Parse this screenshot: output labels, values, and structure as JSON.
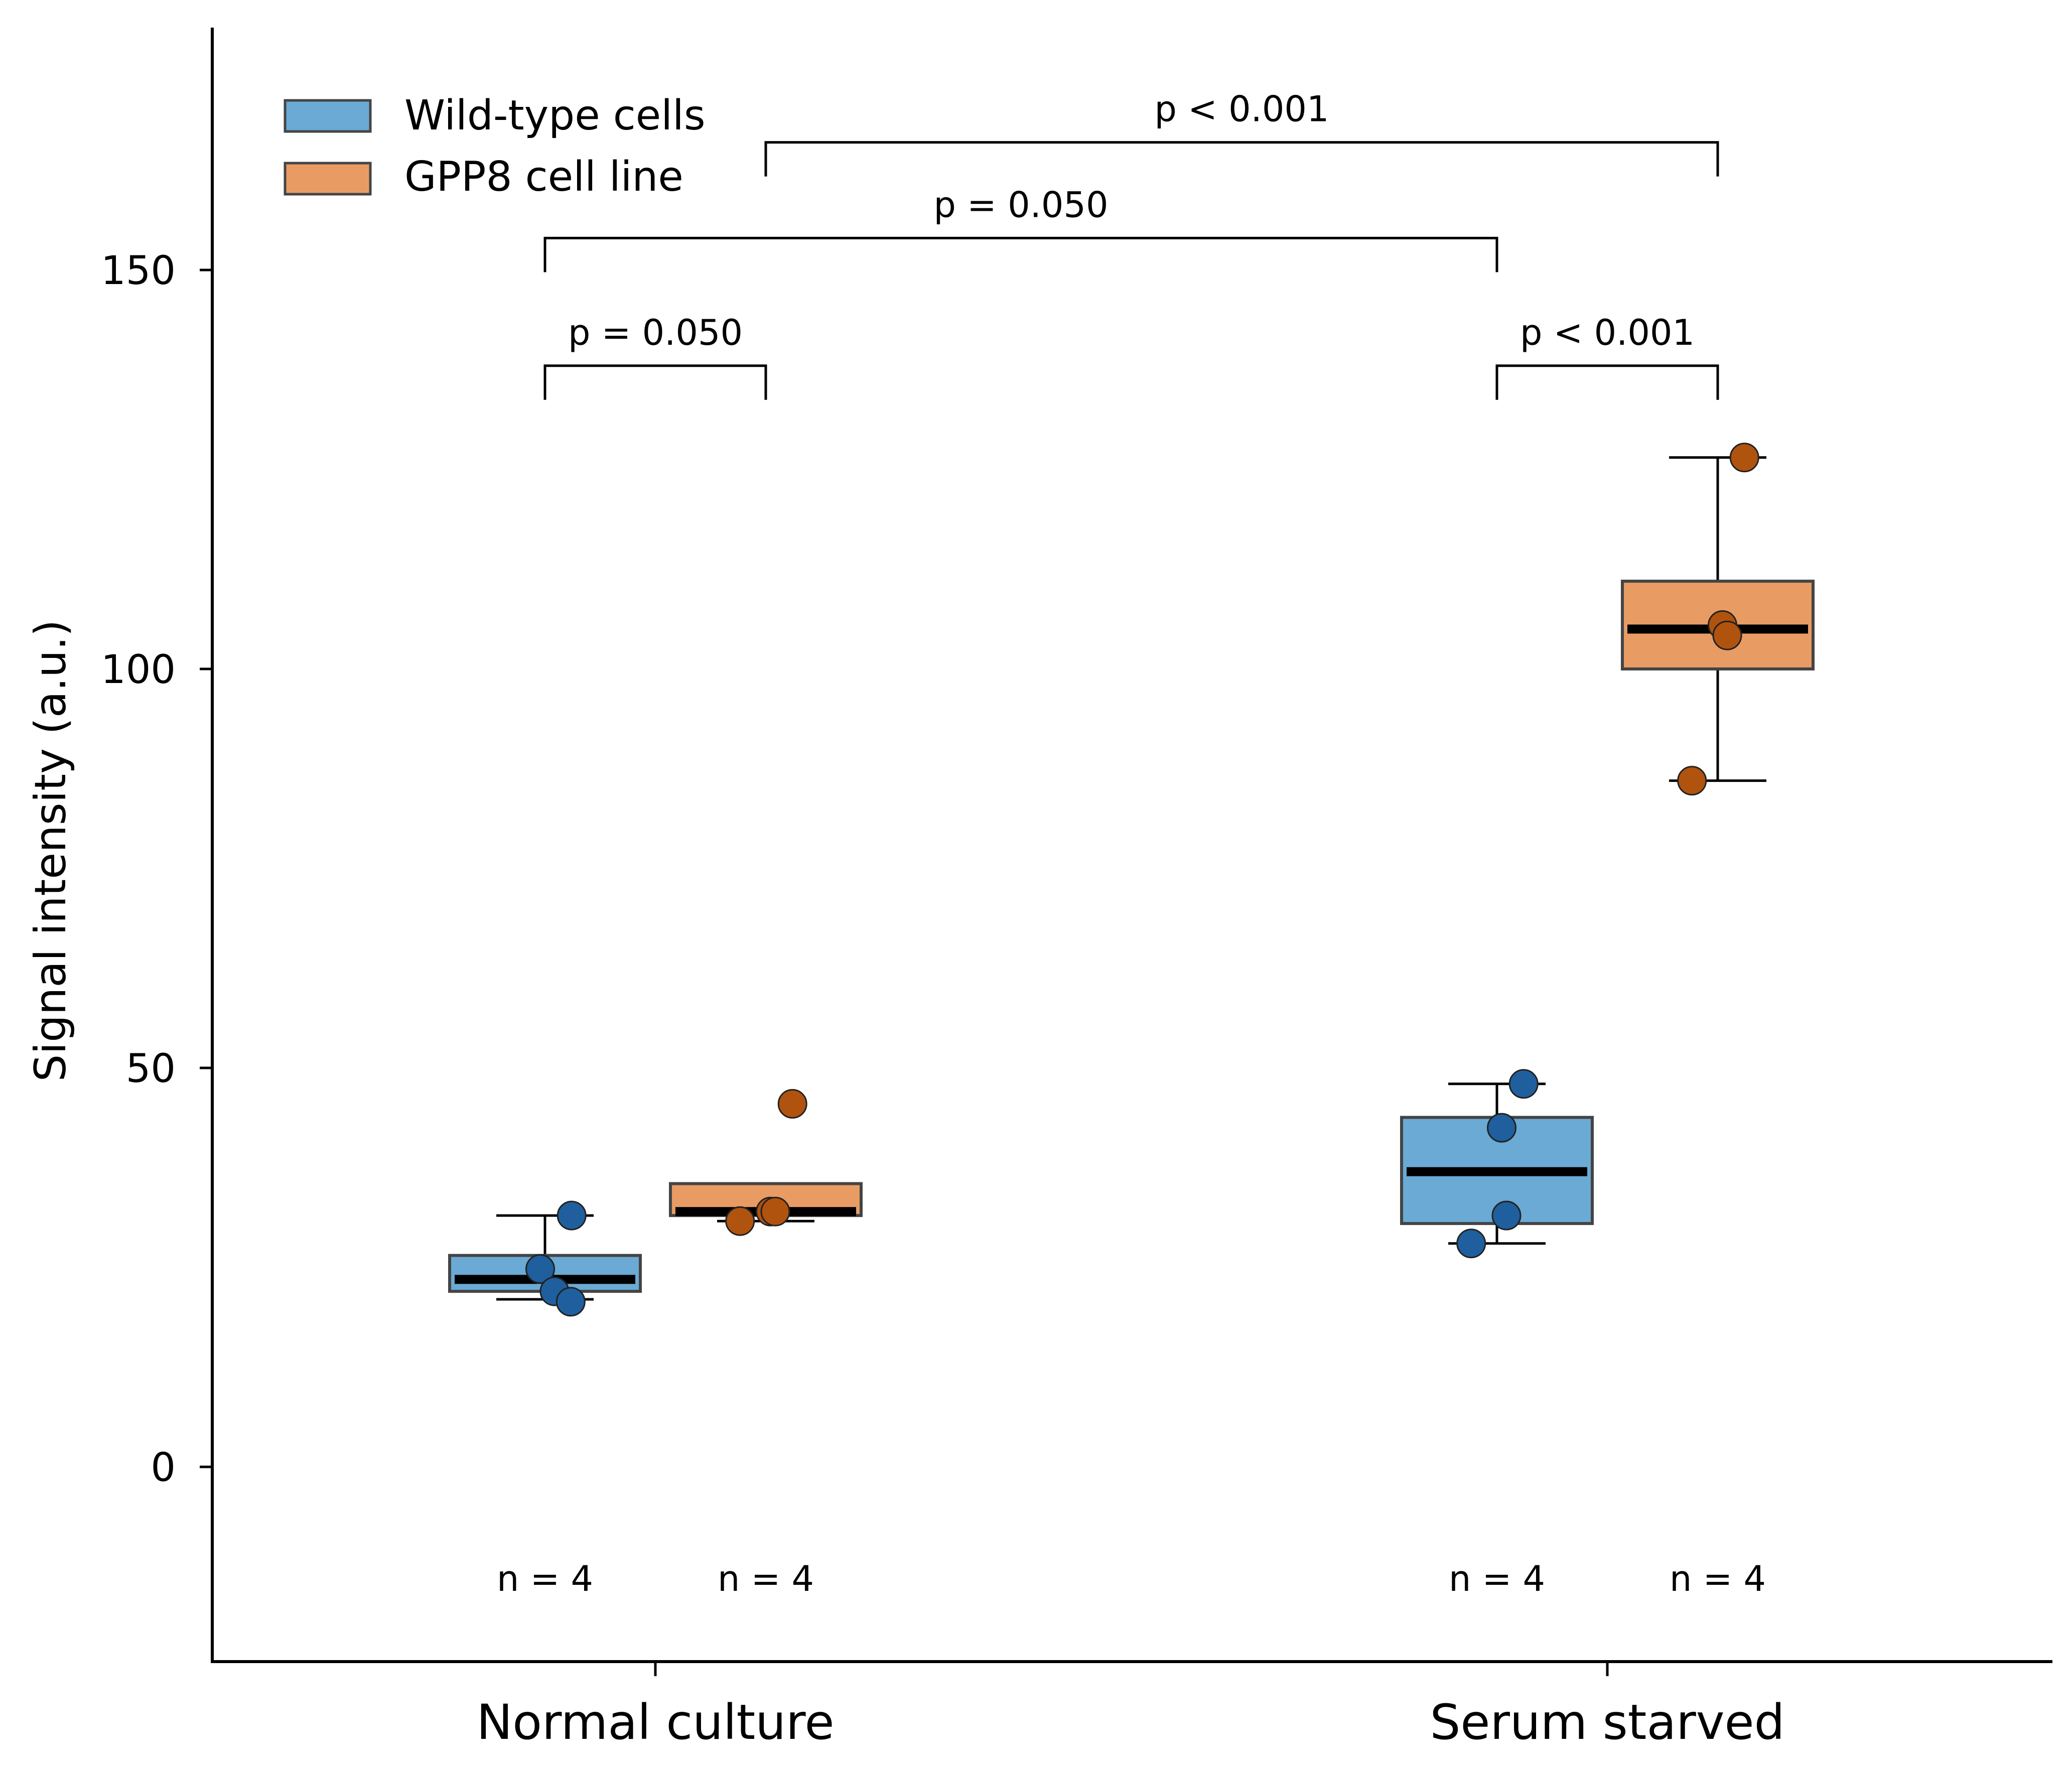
{
  "chart_data": {
    "type": "box",
    "ylabel": "Signal intensity (a.u.)",
    "xlabel": "",
    "ylim": [
      -25,
      180
    ],
    "yticks": [
      0,
      50,
      100,
      150
    ],
    "categories": [
      "Normal culture",
      "Serum starved"
    ],
    "legend": {
      "position": "top-left"
    },
    "series": [
      {
        "name": "Wild-type cells",
        "color": "#6aaad4",
        "point_color": "#1f5f9e",
        "groups": [
          {
            "category": "Normal culture",
            "q1": 22,
            "median": 23.5,
            "q3": 26.5,
            "whisker_low": 21,
            "whisker_high": 31.5,
            "points": [
              31.5,
              24.8,
              22,
              20.7
            ],
            "n_label": "n = 4"
          },
          {
            "category": "Serum starved",
            "q1": 30.5,
            "median": 37,
            "q3": 43.8,
            "whisker_low": 28,
            "whisker_high": 48,
            "points": [
              48,
              42.5,
              31.5,
              28
            ],
            "n_label": "n = 4"
          }
        ]
      },
      {
        "name": "GPP8 cell line",
        "color": "#e89c64",
        "point_color": "#b0530e",
        "groups": [
          {
            "category": "Normal culture",
            "q1": 31.5,
            "median": 32,
            "q3": 35.5,
            "whisker_low": 30.8,
            "whisker_high": 35.5,
            "points": [
              45.5,
              32,
              32,
              30.8
            ],
            "n_label": "n = 4"
          },
          {
            "category": "Serum starved",
            "q1": 100,
            "median": 105,
            "q3": 111,
            "whisker_low": 86,
            "whisker_high": 126.5,
            "points": [
              126.5,
              105.5,
              104.2,
              86
            ],
            "n_label": "n = 4"
          }
        ]
      }
    ],
    "significance": [
      {
        "from": [
          0,
          0
        ],
        "to": [
          0,
          1
        ],
        "y": 138,
        "label": "p = 0.050"
      },
      {
        "from": [
          1,
          0
        ],
        "to": [
          1,
          1
        ],
        "y": 138,
        "label": "p < 0.001"
      },
      {
        "from": [
          0,
          0
        ],
        "to": [
          1,
          0
        ],
        "y": 154,
        "label": "p = 0.050"
      },
      {
        "from": [
          0,
          1
        ],
        "to": [
          1,
          1
        ],
        "y": 166,
        "label": "p < 0.001"
      }
    ]
  }
}
